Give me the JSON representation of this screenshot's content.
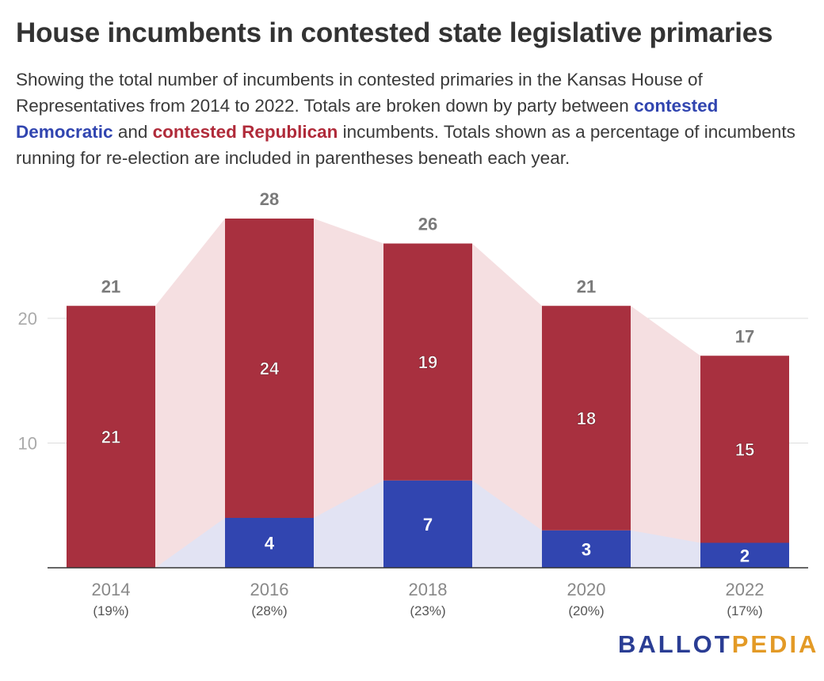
{
  "title": "House incumbents in contested state legislative primaries",
  "subtitle": {
    "part1": "Showing the total number of incumbents in contested primaries in the Kansas House of Representatives from 2014 to 2022. Totals are broken down by party between ",
    "dem": "contested Democratic",
    "part2": " and ",
    "rep": "contested Republican",
    "part3": " incumbents. Totals shown as a percentage of incumbents running for re-election are included in parentheses beneath each year."
  },
  "chart_data": {
    "type": "bar",
    "stacked": true,
    "categories": [
      "2014",
      "2016",
      "2018",
      "2020",
      "2022"
    ],
    "percent_labels": [
      "(19%)",
      "(28%)",
      "(23%)",
      "(20%)",
      "(17%)"
    ],
    "series": [
      {
        "name": "contested Democratic",
        "values": [
          0,
          4,
          7,
          3,
          2
        ],
        "color": "#3145b0"
      },
      {
        "name": "contested Republican",
        "values": [
          21,
          24,
          19,
          18,
          15
        ],
        "color": "#a8303f"
      }
    ],
    "totals": [
      21,
      28,
      26,
      21,
      17
    ],
    "yticks": [
      10,
      20
    ],
    "ylim": [
      0,
      28
    ],
    "grid": true,
    "area_colors": {
      "dem": "#e2e3f3",
      "rep": "#f5dfe1"
    }
  },
  "logo": {
    "part1": "BALLOT",
    "part2": "PEDIA"
  }
}
